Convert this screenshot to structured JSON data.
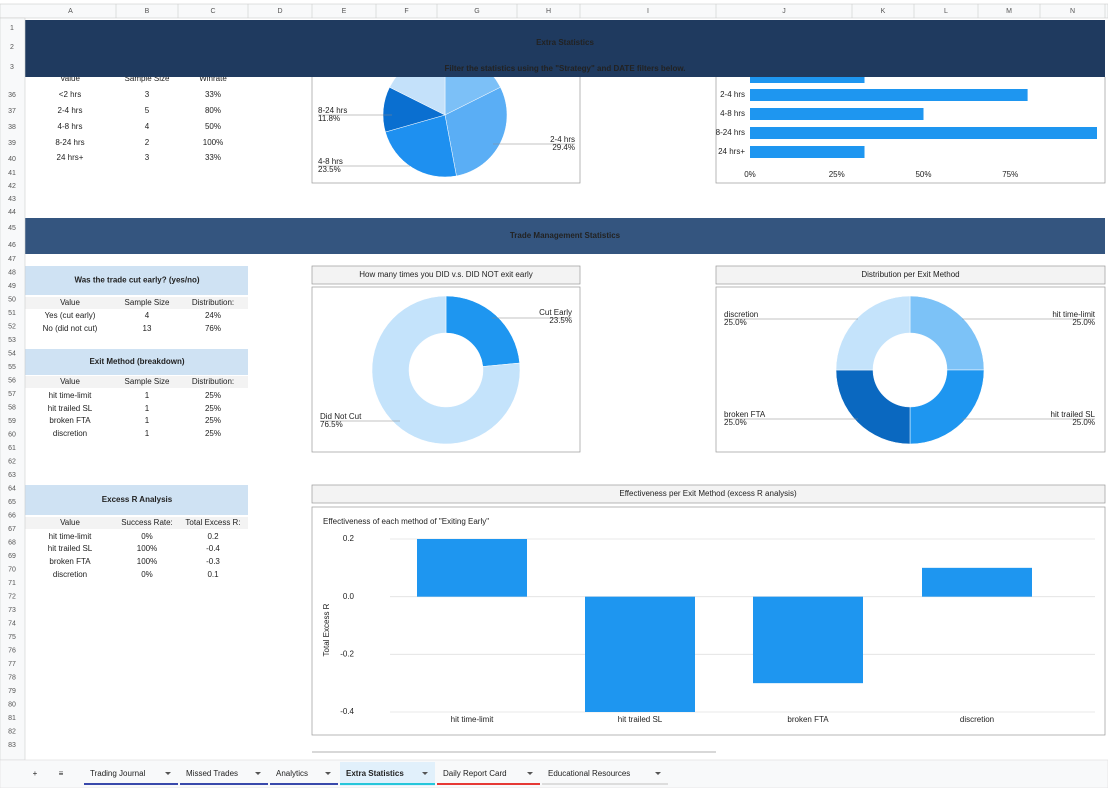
{
  "columns": [
    "A",
    "B",
    "C",
    "D",
    "E",
    "F",
    "G",
    "H",
    "I",
    "J",
    "K",
    "L",
    "M",
    "N"
  ],
  "rows": [
    1,
    2,
    3,
    36,
    37,
    38,
    39,
    40,
    41,
    42,
    43,
    44,
    45,
    46,
    47,
    48,
    49,
    50,
    51,
    52,
    53,
    54,
    55,
    56,
    57,
    58,
    59,
    60,
    61,
    62,
    63,
    64,
    65,
    66,
    67,
    68,
    69,
    70,
    71,
    72,
    73,
    74,
    75,
    76,
    77,
    78,
    79,
    80,
    81,
    82,
    83
  ],
  "header": {
    "title": "Extra Statistics",
    "subtitle": "Filter the statistics using the \"Strategy\" and DATE filters below."
  },
  "holding_table": {
    "headers": [
      "Value",
      "Sample Size",
      "Winrate"
    ],
    "rows": [
      [
        "<2 hrs",
        "3",
        "33%"
      ],
      [
        "2-4 hrs",
        "5",
        "80%"
      ],
      [
        "4-8 hrs",
        "4",
        "50%"
      ],
      [
        "8-24 hrs",
        "2",
        "100%"
      ],
      [
        "24 hrs+",
        "3",
        "33%"
      ]
    ]
  },
  "holding_pie": {
    "type": "pie",
    "values": [
      17.6,
      29.4,
      23.5,
      11.8,
      17.6
    ],
    "colors": [
      "#7cc0f7",
      "#5aaef5",
      "#1e90f0",
      "#0a6fd0",
      "#c4e1fa"
    ],
    "labels": [
      null,
      "2-4 hrs",
      "4-8 hrs",
      "8-24 hrs",
      null
    ],
    "value_labels": [
      null,
      "29.4%",
      "23.5%",
      "11.8%",
      null
    ]
  },
  "holding_bar": {
    "type": "hbar",
    "categories": [
      null,
      "2-4 hrs",
      "4-8 hrs",
      "8-24 hrs",
      "24 hrs+"
    ],
    "values": [
      33,
      80,
      50,
      100,
      33
    ],
    "color": "#1e96f0",
    "xlim": [
      0,
      100
    ],
    "xticks": [
      {
        "value": 0,
        "label": "0%"
      },
      {
        "value": 25,
        "label": "25%"
      },
      {
        "value": 50,
        "label": "50%"
      },
      {
        "value": 75,
        "label": "75%"
      }
    ]
  },
  "section_title": "Trade Management Statistics",
  "cut_table": {
    "title": "Was the trade cut early? (yes/no)",
    "headers": [
      "Value",
      "Sample Size",
      "Distribution:"
    ],
    "rows": [
      [
        "Yes (cut early)",
        "4",
        "24%"
      ],
      [
        "No (did not cut)",
        "13",
        "76%"
      ]
    ]
  },
  "exit_table": {
    "title": "Exit Method (breakdown)",
    "headers": [
      "Value",
      "Sample Size",
      "Distribution:"
    ],
    "rows": [
      [
        "hit time-limit",
        "1",
        "25%"
      ],
      [
        "hit trailed SL",
        "1",
        "25%"
      ],
      [
        "broken FTA",
        "1",
        "25%"
      ],
      [
        "discretion",
        "1",
        "25%"
      ]
    ]
  },
  "excess_table": {
    "title": "Excess R Analysis",
    "headers": [
      "Value",
      "Success Rate:",
      "Total Excess R:"
    ],
    "rows": [
      [
        "hit time-limit",
        "0%",
        "0.2"
      ],
      [
        "hit trailed SL",
        "100%",
        "-0.4"
      ],
      [
        "broken FTA",
        "100%",
        "-0.3"
      ],
      [
        "discretion",
        "0%",
        "0.1"
      ]
    ]
  },
  "cut_donut": {
    "type": "donut",
    "title": "How many times you DID v.s. DID NOT exit early",
    "labels": [
      "Cut Early",
      "Did Not Cut"
    ],
    "values": [
      23.5,
      76.5
    ],
    "value_labels": [
      "23.5%",
      "76.5%"
    ],
    "colors": [
      "#1e96f0",
      "#c4e3fb"
    ]
  },
  "exit_donut": {
    "type": "donut",
    "title": "Distribution per Exit Method",
    "labels": [
      "hit time-limit",
      "hit trailed SL",
      "broken FTA",
      "discretion"
    ],
    "values": [
      25,
      25,
      25,
      25
    ],
    "value_labels": [
      "25.0%",
      "25.0%",
      "25.0%",
      "25.0%"
    ],
    "colors": [
      "#7cc2f7",
      "#1e96f0",
      "#0a68c0",
      "#c4e3fb"
    ]
  },
  "excess_bar": {
    "type": "bar",
    "box_title": "Effectiveness per Exit Method (excess R analysis)",
    "title": "Effectiveness of each method of \"Exiting Early\"",
    "y_label": "Total Excess R",
    "categories": [
      "hit time-limit",
      "hit trailed SL",
      "broken FTA",
      "discretion"
    ],
    "values": [
      0.2,
      -0.4,
      -0.3,
      0.1
    ],
    "color": "#1e96f0",
    "ylim": [
      -0.4,
      0.2
    ],
    "yticks": [
      0.2,
      {
        "value": 0,
        "label": "0.0"
      },
      -0.2,
      -0.4
    ],
    "grid": true
  },
  "tabs": [
    {
      "name": "Trading Journal",
      "color": "#3949ab"
    },
    {
      "name": "Missed Trades",
      "color": "#3949ab"
    },
    {
      "name": "Analytics",
      "color": "#3949ab"
    },
    {
      "name": "Extra Statistics",
      "color": "#26c6da"
    },
    {
      "name": "Daily Report Card",
      "color": "#e53935"
    },
    {
      "name": "Educational Resources",
      "color": "#dddddd"
    }
  ],
  "active_tab": 3
}
